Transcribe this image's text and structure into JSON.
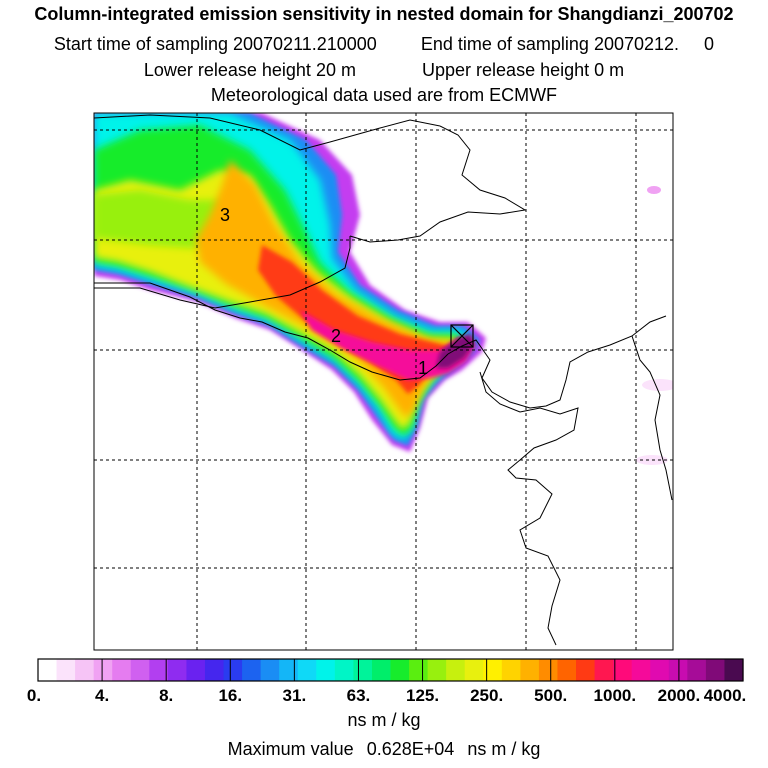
{
  "header": {
    "title": "Column-integrated emission sensitivity in nested domain for Shangdianzi_200702",
    "start_label": "Start time of sampling",
    "start_value": "20070211.210000",
    "end_label": "End time of sampling",
    "end_value": "20070212.     0",
    "lower_label": "Lower release height",
    "lower_value": "20 m",
    "upper_label": "Upper release height",
    "upper_value": "0 m",
    "met_line": "Meteorological data used are from ECMWF"
  },
  "map": {
    "markers": [
      {
        "label": "1"
      },
      {
        "label": "2"
      },
      {
        "label": "3"
      }
    ],
    "release_site_symbol": "cross-in-square"
  },
  "colorbar": {
    "colors": [
      "#ffffff",
      "#fbe3fb",
      "#f6c4f6",
      "#f0a2f3",
      "#e57cf0",
      "#d060f0",
      "#b23ff0",
      "#8f2cf0",
      "#6a22f0",
      "#4526ee",
      "#2a3cf0",
      "#1c63f0",
      "#1a8df4",
      "#14b6f7",
      "#0fd9f7",
      "#00f3ea",
      "#00f5c6",
      "#00f39a",
      "#00ee6a",
      "#17ec2c",
      "#5aee10",
      "#98f00e",
      "#c7f00e",
      "#e8f00e",
      "#fff000",
      "#ffd300",
      "#ffb100",
      "#ff8c00",
      "#ff6400",
      "#ff3a14",
      "#ff1750",
      "#ff0a7a",
      "#f50a9a",
      "#e00ab0",
      "#c80cb0",
      "#a60c98",
      "#800a78",
      "#4a0a50"
    ],
    "ticks": [
      "0.",
      "4.",
      "8.",
      "16.",
      "31.",
      "63.",
      "125.",
      "250.",
      "500.",
      "1000.",
      "2000.",
      "4000."
    ],
    "units": "ns m / kg"
  },
  "footer": {
    "max_label": "Maximum value",
    "max_value": "0.628E+04",
    "max_units": "ns m / kg"
  }
}
